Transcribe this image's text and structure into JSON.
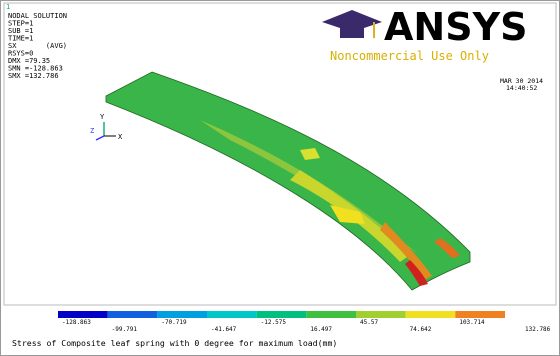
{
  "window_number": "1",
  "info": [
    "NODAL SOLUTION",
    "STEP=1",
    "SUB =1",
    "TIME=1",
    "SX       (AVG)",
    "RSYS=0",
    "DMX =79.35",
    "SMN =-128.863",
    "SMX =132.786"
  ],
  "logo": {
    "name": "ANSYS",
    "notice": "Noncommercial Use Only"
  },
  "timestamp": {
    "date": "MAR 30 2014",
    "time": "14:40:52"
  },
  "triad": [
    "Y",
    "Z",
    "X"
  ],
  "legend_labels": [
    "-128.863",
    "-99.791",
    "-70.719",
    "-41.647",
    "-12.575",
    "16.497",
    "45.57",
    "74.642",
    "103.714",
    "132.786"
  ],
  "caption": "Stress of Composite leaf spring with 0 degree for maximum load(mm)"
}
